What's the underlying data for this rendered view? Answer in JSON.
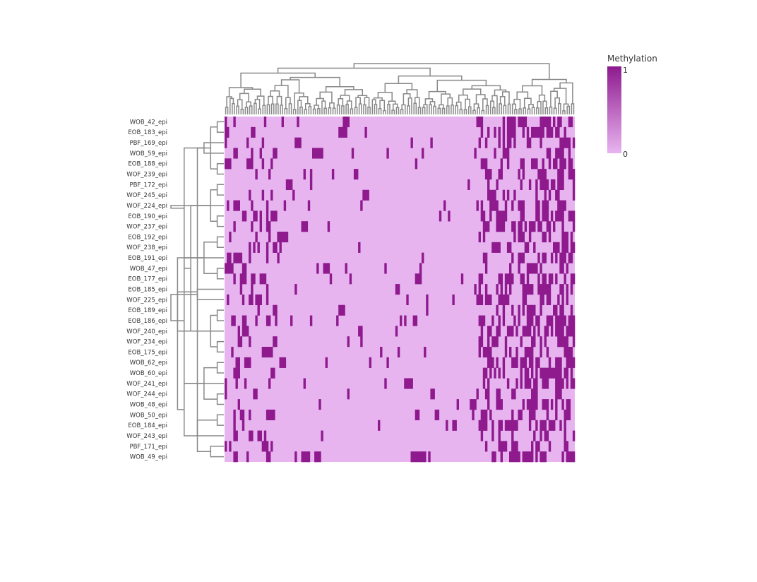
{
  "chart_data": {
    "type": "heatmap",
    "title": "",
    "xlabel": "",
    "ylabel": "",
    "rows": [
      "WOB_42_epi",
      "EOB_183_epi",
      "PBF_169_epi",
      "WOB_59_epi",
      "EOB_188_epi",
      "WOF_239_epi",
      "PBF_172_epi",
      "WOF_245_epi",
      "WOF_224_epi",
      "EOB_190_epi",
      "WOF_237_epi",
      "EOB_192_epi",
      "WOF_238_epi",
      "EOB_191_epi",
      "WOB_47_epi",
      "EOB_177_epi",
      "EOB_185_epi",
      "WOF_225_epi",
      "EOB_189_epi",
      "EOB_186_epi",
      "WOF_240_epi",
      "WOF_234_epi",
      "EOB_175_epi",
      "WOB_62_epi",
      "WOB_60_epi",
      "WOF_241_epi",
      "WOF_244_epi",
      "WOB_48_epi",
      "WOB_50_epi",
      "EOB_184_epi",
      "WOF_243_epi",
      "PBF_171_epi",
      "WOB_49_epi"
    ],
    "n_columns": 160,
    "row_dendrogram": [
      [
        0,
        1,
        1
      ],
      [
        4,
        5,
        1
      ],
      [
        6,
        7,
        1
      ],
      [
        9,
        10,
        1
      ],
      [
        11,
        12,
        1
      ],
      [
        14,
        15,
        1
      ],
      [
        18,
        19,
        1
      ],
      [
        21,
        22,
        1
      ],
      [
        23,
        24,
        1
      ],
      [
        26,
        27,
        1
      ],
      [
        28,
        29,
        1
      ],
      [
        31,
        32,
        2
      ],
      [
        33,
        34,
        2
      ],
      [
        35,
        36,
        2
      ],
      [
        37,
        38,
        3
      ],
      [
        39,
        40,
        2
      ],
      [
        41,
        42,
        3
      ],
      [
        43,
        44,
        4
      ],
      [
        30,
        45,
        4
      ],
      [
        2,
        3,
        3
      ],
      [
        48,
        8,
        5
      ],
      [
        47,
        49,
        6
      ],
      [
        50,
        25,
        6
      ],
      [
        17,
        16,
        4
      ],
      [
        52,
        53,
        6
      ],
      [
        51,
        20,
        7
      ],
      [
        55,
        13,
        7
      ],
      [
        56,
        54,
        8
      ],
      [
        57,
        46,
        8
      ]
    ],
    "color_scale": {
      "min": 0,
      "max": 1,
      "low_color": "#e8b4f0",
      "high_color": "#8e1a8e",
      "title": "Methylation",
      "tick_min": "0",
      "tick_max": "1"
    },
    "density": {
      "left": 0.14,
      "mid": 0.03,
      "right": 0.32
    },
    "patch_runs": [
      [
        1,
        52,
        4
      ],
      [
        2,
        32,
        3
      ],
      [
        5,
        59,
        2
      ],
      [
        3,
        41,
        4
      ],
      [
        11,
        24,
        4
      ],
      [
        25,
        82,
        4
      ],
      [
        32,
        85,
        7
      ],
      [
        15,
        87,
        3
      ],
      [
        26,
        94,
        2
      ],
      [
        28,
        96,
        2
      ],
      [
        29,
        104,
        2
      ]
    ],
    "legend_placement": "top-right"
  }
}
